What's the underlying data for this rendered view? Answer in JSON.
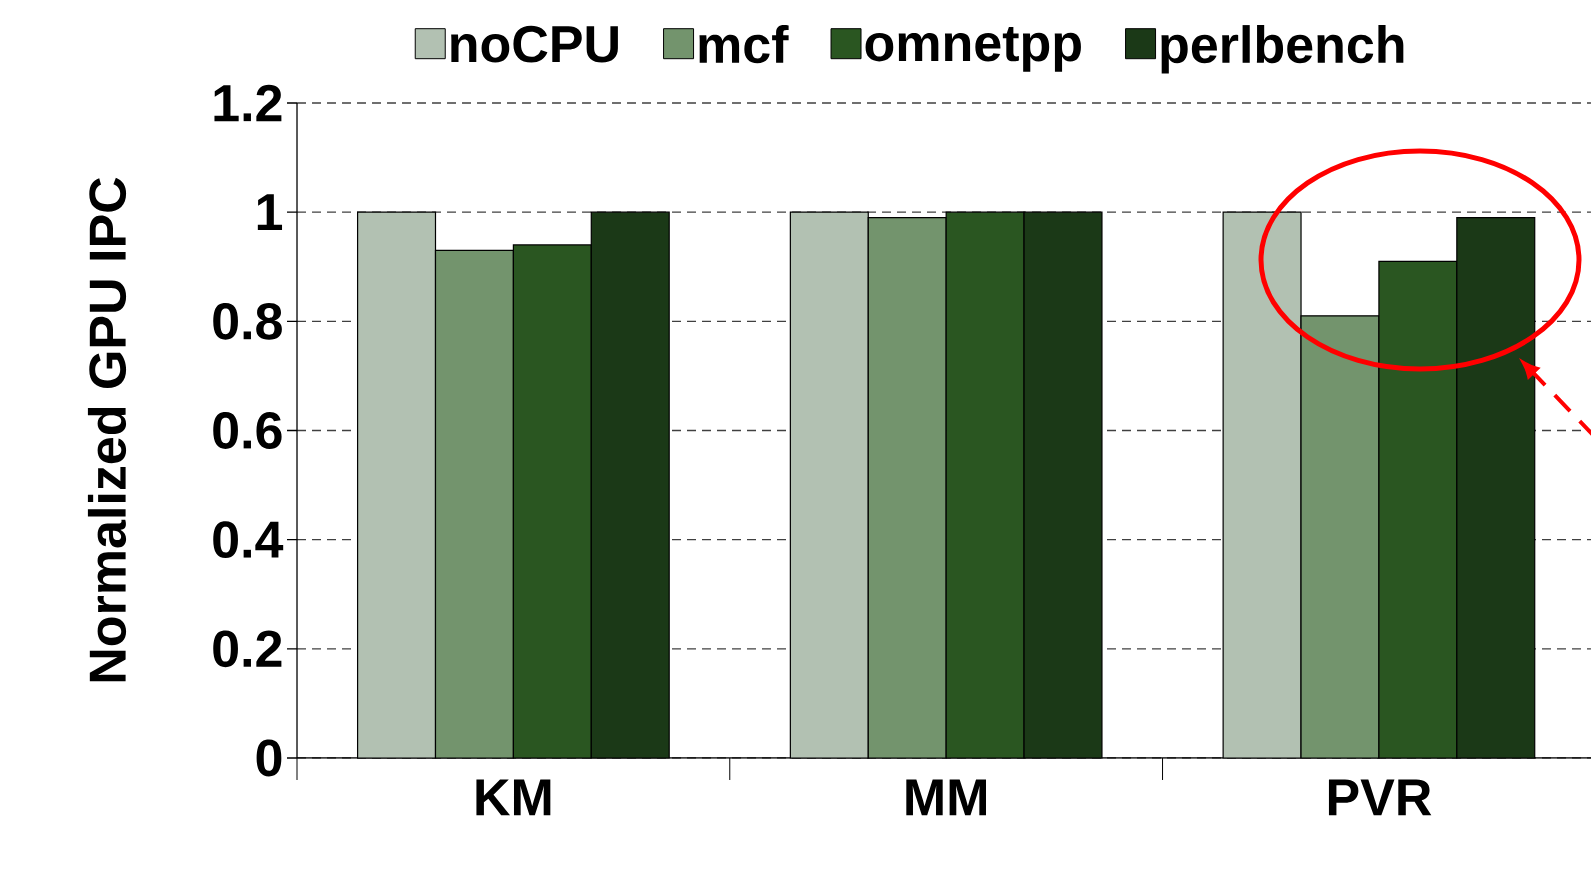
{
  "chart_data": {
    "type": "bar",
    "ylabel": "Normalized GPU IPC",
    "categories": [
      "KM",
      "MM",
      "PVR"
    ],
    "series": [
      {
        "name": "noCPU",
        "color": "#b2c1b2",
        "values": [
          1.0,
          1.0,
          1.0
        ]
      },
      {
        "name": "mcf",
        "color": "#73946d",
        "values": [
          0.93,
          0.99,
          0.81
        ]
      },
      {
        "name": "omnetpp",
        "color": "#2a5621",
        "values": [
          0.94,
          1.0,
          0.91
        ]
      },
      {
        "name": "perlbench",
        "color": "#1b3917",
        "values": [
          1.0,
          1.0,
          0.99
        ]
      }
    ],
    "ylim": [
      0,
      1.2
    ],
    "yticks": [
      0,
      0.2,
      0.4,
      0.6,
      0.8,
      1,
      1.2
    ],
    "grid": "y",
    "legend": "top"
  }
}
